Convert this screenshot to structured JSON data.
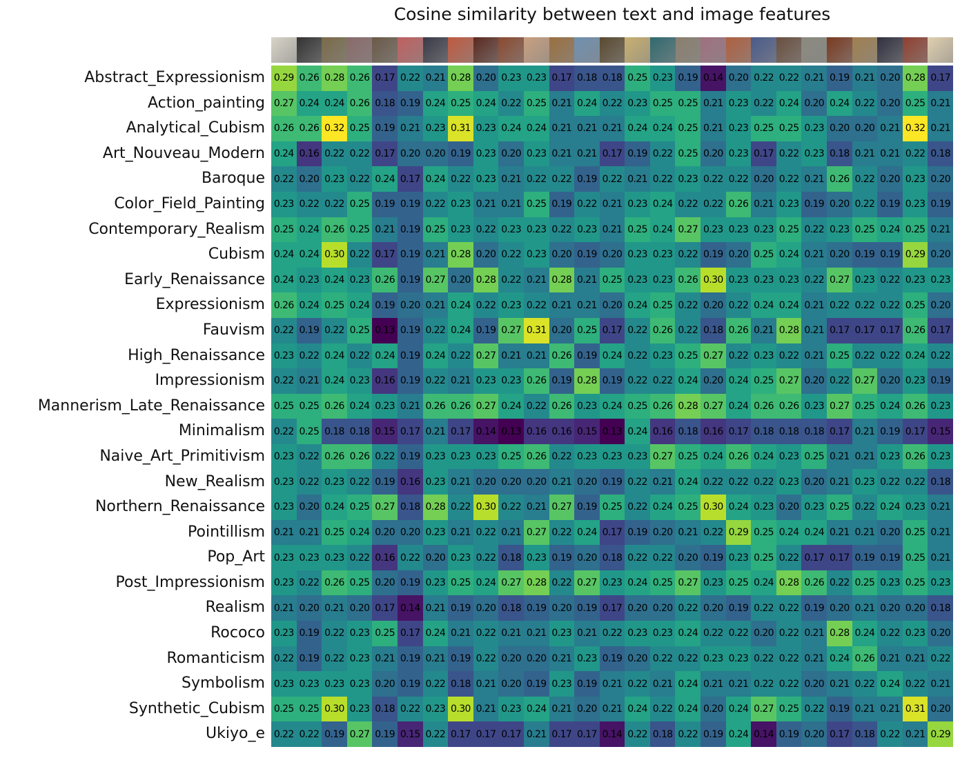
{
  "chart_data": {
    "type": "heatmap",
    "title": "Cosine similarity between text and image features",
    "colormap": "viridis",
    "value_range": [
      0.13,
      0.32
    ],
    "rows": [
      "Abstract_Expressionism",
      "Action_painting",
      "Analytical_Cubism",
      "Art_Nouveau_Modern",
      "Baroque",
      "Color_Field_Painting",
      "Contemporary_Realism",
      "Cubism",
      "Early_Renaissance",
      "Expressionism",
      "Fauvism",
      "High_Renaissance",
      "Impressionism",
      "Mannerism_Late_Renaissance",
      "Minimalism",
      "Naive_Art_Primitivism",
      "New_Realism",
      "Northern_Renaissance",
      "Pointillism",
      "Pop_Art",
      "Post_Impressionism",
      "Realism",
      "Rococo",
      "Romanticism",
      "Symbolism",
      "Synthetic_Cubism",
      "Ukiyo_e"
    ],
    "column_thumbnail_colors": [
      "#d8d4c8",
      "#333333",
      "#7a6a48",
      "#8a6a6a",
      "#6a5a48",
      "#c06060",
      "#3a3a48",
      "#c05a40",
      "#5a2a20",
      "#8a4a30",
      "#c8a080",
      "#9a7040",
      "#7090b0",
      "#5a4a30",
      "#c8b070",
      "#306a70",
      "#8a8070",
      "#a07080",
      "#b06040",
      "#4a5a8a",
      "#6a5040",
      "#8a8a80",
      "#7a3a20",
      "#a08050",
      "#303040",
      "#904030",
      "#e0d0b0"
    ],
    "values": [
      [
        0.29,
        0.26,
        0.28,
        0.26,
        0.17,
        0.22,
        0.21,
        0.28,
        0.2,
        0.23,
        0.23,
        0.17,
        0.18,
        0.18,
        0.25,
        0.23,
        0.19,
        0.14,
        0.2,
        0.22,
        0.22,
        0.21,
        0.19,
        0.21,
        0.2,
        0.28,
        0.17
      ],
      [
        0.27,
        0.24,
        0.24,
        0.26,
        0.18,
        0.19,
        0.24,
        0.25,
        0.24,
        0.22,
        0.25,
        0.21,
        0.24,
        0.22,
        0.23,
        0.25,
        0.25,
        0.21,
        0.23,
        0.22,
        0.24,
        0.2,
        0.24,
        0.22,
        0.2,
        0.25,
        0.21
      ],
      [
        0.26,
        0.26,
        0.32,
        0.25,
        0.19,
        0.21,
        0.23,
        0.31,
        0.23,
        0.24,
        0.24,
        0.21,
        0.21,
        0.21,
        0.24,
        0.24,
        0.25,
        0.21,
        0.23,
        0.25,
        0.25,
        0.23,
        0.2,
        0.2,
        0.21,
        0.32,
        0.21
      ],
      [
        0.24,
        0.16,
        0.22,
        0.22,
        0.17,
        0.2,
        0.2,
        0.19,
        0.23,
        0.2,
        0.23,
        0.21,
        0.21,
        0.17,
        0.19,
        0.22,
        0.25,
        0.2,
        0.23,
        0.17,
        0.22,
        0.23,
        0.18,
        0.21,
        0.21,
        0.22,
        0.18
      ],
      [
        0.22,
        0.2,
        0.23,
        0.22,
        0.24,
        0.17,
        0.24,
        0.22,
        0.23,
        0.21,
        0.22,
        0.22,
        0.19,
        0.22,
        0.21,
        0.22,
        0.23,
        0.22,
        0.22,
        0.2,
        0.22,
        0.21,
        0.26,
        0.22,
        0.2,
        0.23,
        0.2
      ],
      [
        0.23,
        0.22,
        0.22,
        0.25,
        0.19,
        0.19,
        0.22,
        0.23,
        0.21,
        0.21,
        0.25,
        0.19,
        0.22,
        0.21,
        0.23,
        0.24,
        0.22,
        0.22,
        0.26,
        0.21,
        0.23,
        0.19,
        0.2,
        0.22,
        0.19,
        0.23,
        0.19
      ],
      [
        0.25,
        0.24,
        0.26,
        0.25,
        0.21,
        0.19,
        0.25,
        0.23,
        0.22,
        0.23,
        0.23,
        0.22,
        0.23,
        0.21,
        0.25,
        0.24,
        0.27,
        0.23,
        0.23,
        0.23,
        0.25,
        0.22,
        0.23,
        0.25,
        0.24,
        0.25,
        0.21
      ],
      [
        0.24,
        0.24,
        0.3,
        0.22,
        0.17,
        0.19,
        0.21,
        0.28,
        0.2,
        0.22,
        0.23,
        0.2,
        0.19,
        0.2,
        0.23,
        0.23,
        0.22,
        0.19,
        0.2,
        0.25,
        0.24,
        0.21,
        0.2,
        0.19,
        0.19,
        0.29,
        0.2
      ],
      [
        0.24,
        0.23,
        0.24,
        0.23,
        0.26,
        0.19,
        0.27,
        0.2,
        0.28,
        0.22,
        0.21,
        0.28,
        0.21,
        0.25,
        0.23,
        0.23,
        0.26,
        0.3,
        0.23,
        0.23,
        0.23,
        0.22,
        0.27,
        0.23,
        0.22,
        0.23,
        0.23
      ],
      [
        0.26,
        0.24,
        0.25,
        0.24,
        0.19,
        0.2,
        0.21,
        0.24,
        0.22,
        0.23,
        0.22,
        0.21,
        0.21,
        0.2,
        0.24,
        0.25,
        0.22,
        0.2,
        0.22,
        0.24,
        0.24,
        0.21,
        0.22,
        0.22,
        0.22,
        0.25,
        0.2
      ],
      [
        0.22,
        0.19,
        0.22,
        0.25,
        0.13,
        0.19,
        0.22,
        0.24,
        0.19,
        0.27,
        0.31,
        0.2,
        0.25,
        0.17,
        0.22,
        0.26,
        0.22,
        0.18,
        0.26,
        0.21,
        0.28,
        0.21,
        0.17,
        0.17,
        0.17,
        0.26,
        0.17
      ],
      [
        0.23,
        0.22,
        0.24,
        0.22,
        0.24,
        0.19,
        0.24,
        0.22,
        0.27,
        0.21,
        0.21,
        0.26,
        0.19,
        0.24,
        0.22,
        0.23,
        0.25,
        0.27,
        0.22,
        0.23,
        0.22,
        0.21,
        0.25,
        0.22,
        0.22,
        0.24,
        0.22
      ],
      [
        0.22,
        0.21,
        0.24,
        0.23,
        0.16,
        0.19,
        0.22,
        0.21,
        0.23,
        0.23,
        0.26,
        0.19,
        0.28,
        0.19,
        0.22,
        0.22,
        0.24,
        0.2,
        0.24,
        0.25,
        0.27,
        0.2,
        0.22,
        0.27,
        0.2,
        0.23,
        0.19
      ],
      [
        0.25,
        0.25,
        0.26,
        0.24,
        0.23,
        0.21,
        0.26,
        0.26,
        0.27,
        0.24,
        0.22,
        0.26,
        0.23,
        0.24,
        0.25,
        0.26,
        0.28,
        0.27,
        0.24,
        0.26,
        0.26,
        0.23,
        0.27,
        0.25,
        0.24,
        0.26,
        0.23
      ],
      [
        0.22,
        0.25,
        0.18,
        0.18,
        0.15,
        0.17,
        0.21,
        0.17,
        0.14,
        0.13,
        0.16,
        0.16,
        0.15,
        0.13,
        0.24,
        0.16,
        0.18,
        0.16,
        0.17,
        0.18,
        0.18,
        0.18,
        0.17,
        0.21,
        0.19,
        0.17,
        0.15
      ],
      [
        0.23,
        0.22,
        0.26,
        0.26,
        0.22,
        0.19,
        0.23,
        0.23,
        0.23,
        0.25,
        0.26,
        0.22,
        0.23,
        0.23,
        0.23,
        0.27,
        0.25,
        0.24,
        0.26,
        0.24,
        0.23,
        0.25,
        0.21,
        0.21,
        0.23,
        0.26,
        0.23
      ],
      [
        0.23,
        0.22,
        0.23,
        0.22,
        0.19,
        0.16,
        0.23,
        0.21,
        0.2,
        0.2,
        0.2,
        0.21,
        0.2,
        0.19,
        0.22,
        0.21,
        0.24,
        0.22,
        0.22,
        0.22,
        0.23,
        0.2,
        0.21,
        0.23,
        0.22,
        0.22,
        0.18
      ],
      [
        0.23,
        0.2,
        0.24,
        0.25,
        0.27,
        0.18,
        0.28,
        0.22,
        0.3,
        0.22,
        0.21,
        0.27,
        0.19,
        0.25,
        0.22,
        0.24,
        0.25,
        0.3,
        0.24,
        0.23,
        0.2,
        0.23,
        0.25,
        0.22,
        0.24,
        0.23,
        0.21
      ],
      [
        0.21,
        0.21,
        0.25,
        0.24,
        0.2,
        0.2,
        0.23,
        0.21,
        0.22,
        0.21,
        0.27,
        0.22,
        0.24,
        0.17,
        0.19,
        0.2,
        0.21,
        0.22,
        0.29,
        0.25,
        0.24,
        0.24,
        0.21,
        0.21,
        0.2,
        0.25,
        0.21
      ],
      [
        0.23,
        0.23,
        0.23,
        0.22,
        0.16,
        0.22,
        0.2,
        0.23,
        0.22,
        0.18,
        0.23,
        0.19,
        0.2,
        0.18,
        0.22,
        0.22,
        0.2,
        0.19,
        0.23,
        0.25,
        0.22,
        0.17,
        0.17,
        0.19,
        0.19,
        0.25,
        0.21
      ],
      [
        0.23,
        0.22,
        0.26,
        0.25,
        0.2,
        0.19,
        0.23,
        0.25,
        0.24,
        0.27,
        0.28,
        0.22,
        0.27,
        0.23,
        0.24,
        0.25,
        0.27,
        0.23,
        0.25,
        0.24,
        0.28,
        0.26,
        0.22,
        0.25,
        0.23,
        0.25,
        0.23
      ],
      [
        0.21,
        0.2,
        0.21,
        0.2,
        0.17,
        0.14,
        0.21,
        0.19,
        0.2,
        0.18,
        0.19,
        0.2,
        0.19,
        0.17,
        0.2,
        0.2,
        0.22,
        0.2,
        0.19,
        0.22,
        0.22,
        0.19,
        0.2,
        0.21,
        0.2,
        0.2,
        0.18
      ],
      [
        0.23,
        0.19,
        0.22,
        0.23,
        0.25,
        0.17,
        0.24,
        0.21,
        0.22,
        0.21,
        0.21,
        0.23,
        0.21,
        0.22,
        0.23,
        0.23,
        0.24,
        0.22,
        0.22,
        0.2,
        0.22,
        0.21,
        0.28,
        0.24,
        0.22,
        0.23,
        0.2
      ],
      [
        0.22,
        0.19,
        0.22,
        0.23,
        0.21,
        0.19,
        0.21,
        0.19,
        0.22,
        0.2,
        0.2,
        0.21,
        0.23,
        0.19,
        0.2,
        0.22,
        0.22,
        0.23,
        0.23,
        0.22,
        0.22,
        0.21,
        0.24,
        0.26,
        0.21,
        0.21,
        0.22
      ],
      [
        0.23,
        0.23,
        0.23,
        0.23,
        0.2,
        0.19,
        0.22,
        0.18,
        0.21,
        0.2,
        0.19,
        0.23,
        0.19,
        0.21,
        0.22,
        0.21,
        0.24,
        0.21,
        0.21,
        0.22,
        0.22,
        0.2,
        0.21,
        0.22,
        0.24,
        0.22,
        0.21
      ],
      [
        0.25,
        0.25,
        0.3,
        0.23,
        0.18,
        0.22,
        0.23,
        0.3,
        0.21,
        0.23,
        0.24,
        0.21,
        0.2,
        0.21,
        0.24,
        0.22,
        0.24,
        0.2,
        0.24,
        0.27,
        0.25,
        0.22,
        0.19,
        0.21,
        0.21,
        0.31,
        0.2
      ],
      [
        0.22,
        0.22,
        0.19,
        0.27,
        0.19,
        0.15,
        0.22,
        0.17,
        0.17,
        0.17,
        0.21,
        0.17,
        0.17,
        0.14,
        0.22,
        0.18,
        0.22,
        0.19,
        0.24,
        0.14,
        0.19,
        0.2,
        0.17,
        0.18,
        0.22,
        0.21,
        0.29
      ]
    ]
  }
}
